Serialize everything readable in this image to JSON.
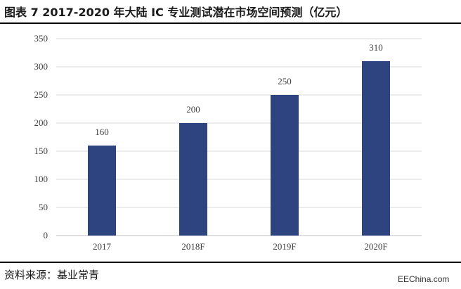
{
  "title": "图表 7 2017-2020 年大陆 IC 专业测试潜在市场空间预测（亿元）",
  "source": "资料来源：基业常青",
  "site_mark": "EEChina.com",
  "colors": {
    "bar": "#2E4480",
    "grid": "#d9d9d9",
    "axis": "#bfbfbf"
  },
  "chart_data": {
    "type": "bar",
    "categories": [
      "2017",
      "2018F",
      "2019F",
      "2020F"
    ],
    "values": [
      160,
      200,
      250,
      310
    ],
    "ylim": [
      0,
      350
    ],
    "yticks": [
      0,
      50,
      100,
      150,
      200,
      250,
      300,
      350
    ],
    "grid": true,
    "xlabel": "",
    "ylabel": ""
  }
}
